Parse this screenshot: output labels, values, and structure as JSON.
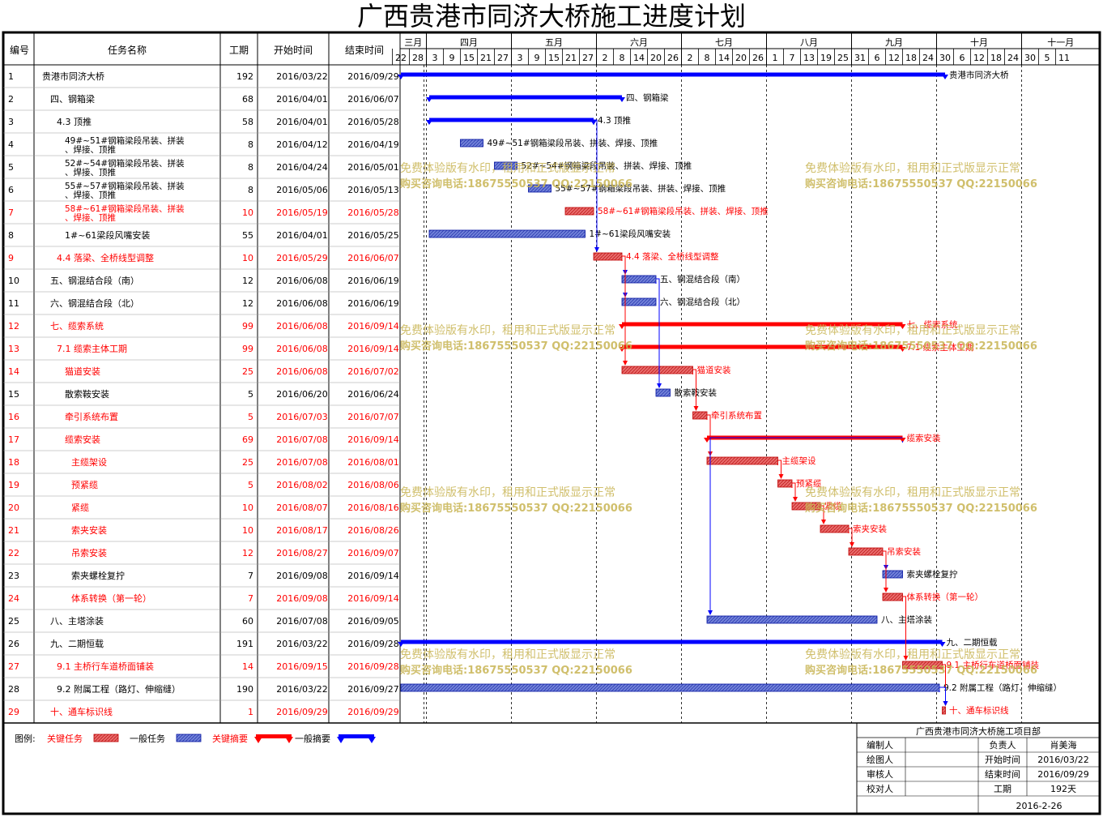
{
  "title": "广西贵港市同济大桥施工进度计划",
  "columns": {
    "id": "编号",
    "name": "任务名称",
    "duration": "工期",
    "start": "开始时间",
    "end": "结束时间"
  },
  "timeline": {
    "months": [
      {
        "label": "三月",
        "ticks": [
          "22",
          "28"
        ]
      },
      {
        "label": "四月",
        "ticks": [
          "3",
          "9",
          "15",
          "21",
          "27"
        ]
      },
      {
        "label": "五月",
        "ticks": [
          "3",
          "9",
          "15",
          "21",
          "27"
        ]
      },
      {
        "label": "六月",
        "ticks": [
          "2",
          "8",
          "14",
          "20",
          "26"
        ]
      },
      {
        "label": "七月",
        "ticks": [
          "2",
          "8",
          "14",
          "20",
          "26"
        ]
      },
      {
        "label": "八月",
        "ticks": [
          "1",
          "7",
          "13",
          "19",
          "25"
        ]
      },
      {
        "label": "九月",
        "ticks": [
          "31",
          "6",
          "12",
          "18",
          "24"
        ]
      },
      {
        "label": "十月",
        "ticks": [
          "30",
          "6",
          "12",
          "18",
          "24"
        ]
      },
      {
        "label": "十一月",
        "ticks": [
          "30",
          "5",
          "11"
        ]
      }
    ]
  },
  "chart_data": {
    "type": "gantt",
    "title": "广西贵港市同济大桥施工进度计划",
    "x_range": [
      "2016/03/19",
      "2016/11/14"
    ],
    "tasks": [
      {
        "id": "1",
        "name": "贵港市同济大桥",
        "duration": "192",
        "start": "2016/03/22",
        "end": "2016/09/29",
        "type": "summary",
        "critical": false,
        "level": 0,
        "bar_label": "贵港市同济大桥"
      },
      {
        "id": "2",
        "name": "四、钢箱梁",
        "duration": "68",
        "start": "2016/04/01",
        "end": "2016/06/07",
        "type": "summary",
        "critical": false,
        "level": 1,
        "bar_label": "四、钢箱梁"
      },
      {
        "id": "3",
        "name": "4.3 顶推",
        "duration": "58",
        "start": "2016/04/01",
        "end": "2016/05/28",
        "type": "summary",
        "critical": false,
        "level": 2,
        "bar_label": "4.3 顶推"
      },
      {
        "id": "4",
        "name": "49#~51#钢箱梁段吊装、拼装、焊接、顶推",
        "duration": "8",
        "start": "2016/04/12",
        "end": "2016/04/19",
        "type": "task",
        "critical": false,
        "level": 3,
        "bar_label": "49#~51#钢箱梁段吊装、拼装、焊接、顶推"
      },
      {
        "id": "5",
        "name": "52#~54#钢箱梁段吊装、拼装、焊接、顶推",
        "duration": "8",
        "start": "2016/04/24",
        "end": "2016/05/01",
        "type": "task",
        "critical": false,
        "level": 3,
        "bar_label": "52#~54#钢箱梁段吊装、拼装、焊接、顶推"
      },
      {
        "id": "6",
        "name": "55#~57#钢箱梁段吊装、拼装、焊接、顶推",
        "duration": "8",
        "start": "2016/05/06",
        "end": "2016/05/13",
        "type": "task",
        "critical": false,
        "level": 3,
        "bar_label": "55#~57#钢箱梁段吊装、拼装、焊接、顶推"
      },
      {
        "id": "7",
        "name": "58#~61#钢箱梁段吊装、拼装、焊接、顶推",
        "duration": "10",
        "start": "2016/05/19",
        "end": "2016/05/28",
        "type": "task",
        "critical": true,
        "level": 3,
        "bar_label": "58#~61#钢箱梁段吊装、拼装、焊接、顶推"
      },
      {
        "id": "8",
        "name": "1#~61梁段风嘴安装",
        "duration": "55",
        "start": "2016/04/01",
        "end": "2016/05/25",
        "type": "task",
        "critical": false,
        "level": 3,
        "bar_label": "1#~61梁段风嘴安装"
      },
      {
        "id": "9",
        "name": "4.4 落梁、全桥线型调整",
        "duration": "10",
        "start": "2016/05/29",
        "end": "2016/06/07",
        "type": "task",
        "critical": true,
        "level": 2,
        "bar_label": "4.4 落梁、全桥线型调整"
      },
      {
        "id": "10",
        "name": "五、钢混结合段（南）",
        "duration": "12",
        "start": "2016/06/08",
        "end": "2016/06/19",
        "type": "task",
        "critical": false,
        "level": 1,
        "bar_label": "五、钢混结合段（南）"
      },
      {
        "id": "11",
        "name": "六、钢混结合段（北）",
        "duration": "12",
        "start": "2016/06/08",
        "end": "2016/06/19",
        "type": "task",
        "critical": false,
        "level": 1,
        "bar_label": "六、钢混结合段（北）"
      },
      {
        "id": "12",
        "name": "七、缆索系统",
        "duration": "99",
        "start": "2016/06/08",
        "end": "2016/09/14",
        "type": "summary",
        "critical": true,
        "level": 1,
        "bar_label": "七、缆索系统"
      },
      {
        "id": "13",
        "name": "7.1 缆索主体工期",
        "duration": "99",
        "start": "2016/06/08",
        "end": "2016/09/14",
        "type": "summary",
        "critical": true,
        "level": 2,
        "bar_label": "7.1 缆索主体工期"
      },
      {
        "id": "14",
        "name": "猫道安装",
        "duration": "25",
        "start": "2016/06/08",
        "end": "2016/07/02",
        "type": "task",
        "critical": true,
        "level": 3,
        "bar_label": "猫道安装"
      },
      {
        "id": "15",
        "name": "散索鞍安装",
        "duration": "5",
        "start": "2016/06/20",
        "end": "2016/06/24",
        "type": "task",
        "critical": false,
        "level": 3,
        "bar_label": "散索鞍安装"
      },
      {
        "id": "16",
        "name": "牵引系统布置",
        "duration": "5",
        "start": "2016/07/03",
        "end": "2016/07/07",
        "type": "task",
        "critical": true,
        "level": 3,
        "bar_label": "牵引系统布置"
      },
      {
        "id": "17",
        "name": "缆索安装",
        "duration": "69",
        "start": "2016/07/08",
        "end": "2016/09/14",
        "type": "summary",
        "critical": true,
        "level": 3,
        "bar_label": "缆索安装"
      },
      {
        "id": "18",
        "name": "主缆架设",
        "duration": "25",
        "start": "2016/07/08",
        "end": "2016/08/01",
        "type": "task",
        "critical": true,
        "level": 4,
        "bar_label": "主缆架设"
      },
      {
        "id": "19",
        "name": "预紧缆",
        "duration": "5",
        "start": "2016/08/02",
        "end": "2016/08/06",
        "type": "task",
        "critical": true,
        "level": 4,
        "bar_label": "预紧缆"
      },
      {
        "id": "20",
        "name": "紧缆",
        "duration": "10",
        "start": "2016/08/07",
        "end": "2016/08/16",
        "type": "task",
        "critical": true,
        "level": 4,
        "bar_label": "紧缆"
      },
      {
        "id": "21",
        "name": "索夹安装",
        "duration": "10",
        "start": "2016/08/17",
        "end": "2016/08/26",
        "type": "task",
        "critical": true,
        "level": 4,
        "bar_label": "索夹安装"
      },
      {
        "id": "22",
        "name": "吊索安装",
        "duration": "12",
        "start": "2016/08/27",
        "end": "2016/09/07",
        "type": "task",
        "critical": true,
        "level": 4,
        "bar_label": "吊索安装"
      },
      {
        "id": "23",
        "name": "索夹螺栓复拧",
        "duration": "7",
        "start": "2016/09/08",
        "end": "2016/09/14",
        "type": "task",
        "critical": false,
        "level": 4,
        "bar_label": "索夹螺栓复拧"
      },
      {
        "id": "24",
        "name": "体系转换（第一轮）",
        "duration": "7",
        "start": "2016/09/08",
        "end": "2016/09/14",
        "type": "task",
        "critical": true,
        "level": 4,
        "bar_label": "体系转换（第一轮）"
      },
      {
        "id": "25",
        "name": "八、主塔涂装",
        "duration": "60",
        "start": "2016/07/08",
        "end": "2016/09/05",
        "type": "task",
        "critical": false,
        "level": 1,
        "bar_label": "八、主塔涂装"
      },
      {
        "id": "26",
        "name": "九、二期恒载",
        "duration": "191",
        "start": "2016/03/22",
        "end": "2016/09/28",
        "type": "summary",
        "critical": false,
        "level": 1,
        "bar_label": "九、二期恒载"
      },
      {
        "id": "27",
        "name": "9.1 主桥行车道桥面铺装",
        "duration": "14",
        "start": "2016/09/15",
        "end": "2016/09/28",
        "type": "task",
        "critical": true,
        "level": 2,
        "bar_label": "9.1 主桥行车道桥面铺装"
      },
      {
        "id": "28",
        "name": "9.2 附属工程（路灯、伸缩缝）",
        "duration": "190",
        "start": "2016/03/22",
        "end": "2016/09/27",
        "type": "task",
        "critical": false,
        "level": 2,
        "bar_label": "9.2 附属工程（路灯、伸缩缝）"
      },
      {
        "id": "29",
        "name": "十、通车标识线",
        "duration": "1",
        "start": "2016/09/29",
        "end": "2016/09/29",
        "type": "task",
        "critical": true,
        "level": 1,
        "bar_label": "十、通车标识线"
      }
    ],
    "links": [
      [
        3,
        9
      ],
      [
        9,
        10
      ],
      [
        9,
        11
      ],
      [
        9,
        14
      ],
      [
        10,
        15
      ],
      [
        14,
        16
      ],
      [
        16,
        18
      ],
      [
        18,
        19
      ],
      [
        19,
        20
      ],
      [
        20,
        21
      ],
      [
        21,
        22
      ],
      [
        22,
        23
      ],
      [
        22,
        24
      ],
      [
        17,
        25
      ],
      [
        24,
        27
      ],
      [
        27,
        29
      ],
      [
        28,
        29
      ]
    ]
  },
  "legend": {
    "label": "图例:",
    "items": [
      {
        "text": "关键任务",
        "kind": "critical-task"
      },
      {
        "text": "一般任务",
        "kind": "normal-task"
      },
      {
        "text": "关键摘要",
        "kind": "critical-summary"
      },
      {
        "text": "一般摘要",
        "kind": "normal-summary"
      }
    ]
  },
  "watermark": {
    "line1": "免费体验版有水印，租用和正式版显示正常",
    "line2": "购买咨询电话:18675550537 QQ:22150066"
  },
  "info_box": {
    "org": "广西贵港市同济大桥施工项目部",
    "rows": [
      {
        "label": "编制人",
        "value": "",
        "label2": "负责人",
        "value2": "肖美海"
      },
      {
        "label": "绘图人",
        "value": "",
        "label2": "开始时间",
        "value2": "2016/03/22"
      },
      {
        "label": "审核人",
        "value": "",
        "label2": "结束时间",
        "value2": "2016/09/29"
      },
      {
        "label": "校对人",
        "value": "",
        "label2": "工期",
        "value2": "192天"
      }
    ],
    "date": "2016-2-26"
  },
  "colors": {
    "critical": "#ff0000",
    "normal": "#0000ff",
    "critical_fill": "#e86a6a",
    "normal_fill": "#6f7fd8",
    "watermark": "#c8b452",
    "grid": "#000000"
  }
}
